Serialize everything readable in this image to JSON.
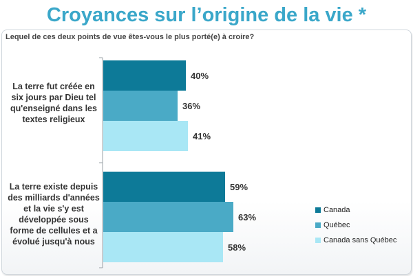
{
  "title": "Croyances sur l’origine de la vie *",
  "question": "Lequel de ces deux points de vue êtes-vous le plus porté(e) à croire?",
  "colors": {
    "title": "#3aa7c9",
    "canada": "#0d7a98",
    "quebec": "#4aaac6",
    "canada_sans_quebec": "#a9e7f5"
  },
  "chart_data": {
    "type": "bar",
    "orientation": "horizontal",
    "categories": [
      "La terre fut créée en six jours par Dieu tel qu'enseigné dans les textes religieux",
      "La terre existe depuis des milliards d'années et la vie s'y est développée sous forme de cellules et a évolué jusqu'à nous"
    ],
    "series": [
      {
        "name": "Canada",
        "values": [
          40,
          59
        ],
        "labels": [
          "40%",
          "59%"
        ]
      },
      {
        "name": "Québec",
        "values": [
          36,
          63
        ],
        "labels": [
          "36%",
          "63%"
        ]
      },
      {
        "name": "Canada sans Québec",
        "values": [
          41,
          58
        ],
        "labels": [
          "41%",
          "58%"
        ]
      }
    ],
    "value_unit": "%",
    "xlim": [
      0,
      100
    ],
    "legend": "bottom-right",
    "grid": false
  }
}
